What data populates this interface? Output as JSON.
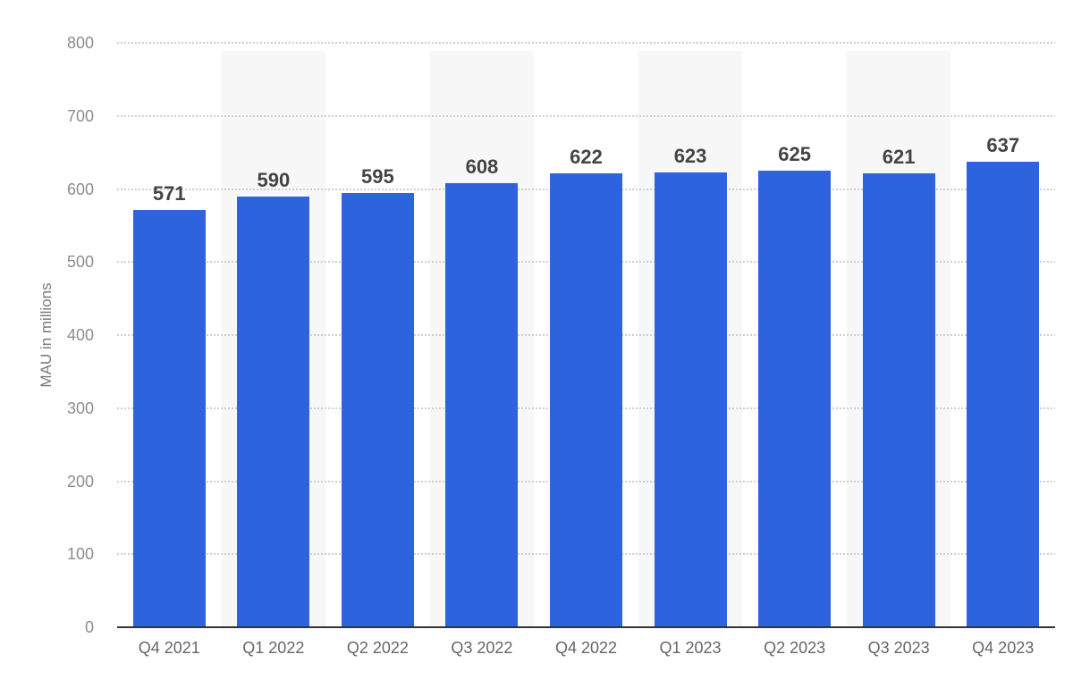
{
  "chart_data": {
    "type": "bar",
    "title": "",
    "ylabel": "MAU in millions",
    "xlabel": "",
    "categories": [
      "Q4 2021",
      "Q1 2022",
      "Q2 2022",
      "Q3 2022",
      "Q4 2022",
      "Q1 2023",
      "Q2 2023",
      "Q3 2023",
      "Q4 2023"
    ],
    "values": [
      571,
      590,
      595,
      608,
      622,
      623,
      625,
      621,
      637
    ],
    "ylim": [
      0,
      800
    ],
    "yticks": [
      0,
      100,
      200,
      300,
      400,
      500,
      600,
      700,
      800
    ],
    "grid": "horizontal-dotted",
    "legend_position": "none",
    "striped_columns": [
      1,
      3,
      5,
      7
    ],
    "colors": {
      "bar": "#2d63dc",
      "stripe": "#f7f7f7",
      "grid_line": "#cfcfcf",
      "axis_line": "#333333",
      "y_tick_label": "#8c8c8c",
      "x_tick_label": "#666666",
      "value_label": "#444444",
      "y_axis_title": "#7a7a7a",
      "background": "#ffffff"
    }
  }
}
